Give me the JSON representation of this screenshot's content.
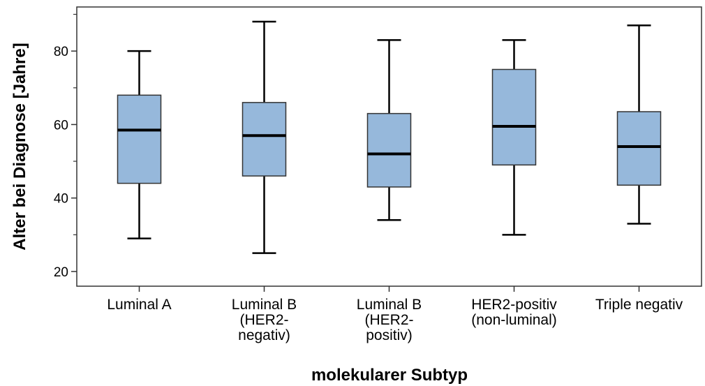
{
  "chart_data": {
    "type": "boxplot",
    "xlabel": "molekularer Subtyp",
    "ylabel": "Alter bei Diagnose [Jahre]",
    "ylim": [
      16,
      92
    ],
    "yticks": [
      20,
      40,
      60,
      80
    ],
    "grid": false,
    "box_color": "#96b8db",
    "categories": [
      {
        "label_lines": [
          "Luminal A"
        ],
        "whisker_low": 29,
        "q1": 44,
        "median": 58.5,
        "q3": 68,
        "whisker_high": 80
      },
      {
        "label_lines": [
          "Luminal B",
          "(HER2-",
          "negativ)"
        ],
        "whisker_low": 25,
        "q1": 46,
        "median": 57,
        "q3": 66,
        "whisker_high": 88
      },
      {
        "label_lines": [
          "Luminal B",
          "(HER2-",
          "positiv)"
        ],
        "whisker_low": 34,
        "q1": 43,
        "median": 52,
        "q3": 63,
        "whisker_high": 83
      },
      {
        "label_lines": [
          "HER2-positiv",
          "(non-luminal)"
        ],
        "whisker_low": 30,
        "q1": 49,
        "median": 59.5,
        "q3": 75,
        "whisker_high": 83
      },
      {
        "label_lines": [
          "Triple negativ"
        ],
        "whisker_low": 33,
        "q1": 43.5,
        "median": 54,
        "q3": 63.5,
        "whisker_high": 87
      }
    ]
  }
}
